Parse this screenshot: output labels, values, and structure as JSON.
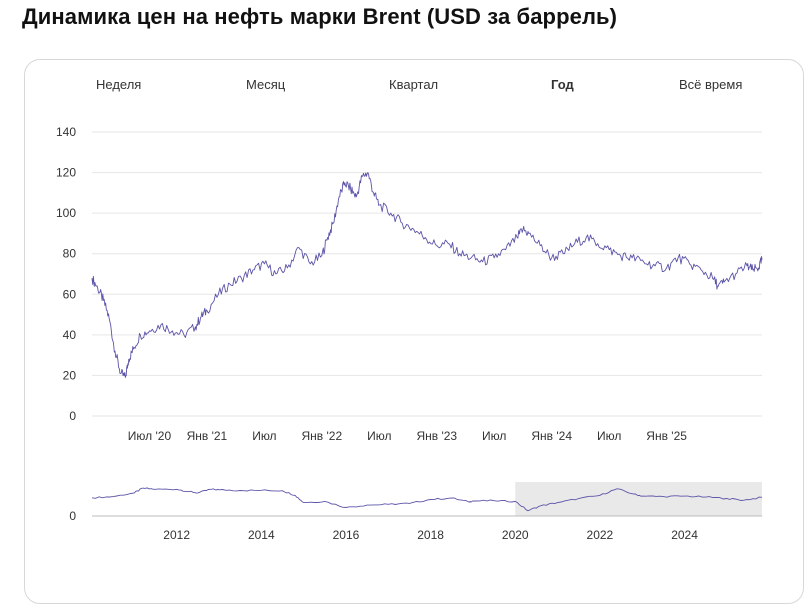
{
  "page": {
    "title": "Динамика цен на нефть марки Brent (USD за баррель)"
  },
  "range_buttons": [
    "Неделя",
    "Месяц",
    "Квартал",
    "Год",
    "Всё время"
  ],
  "active_range": "Год",
  "colors": {
    "line": "#5b54a8",
    "grid": "#e6e6e6",
    "selection": "#e9e9e9"
  },
  "chart_data": [
    {
      "type": "line",
      "title": "",
      "xlabel": "",
      "ylabel": "",
      "ylim": [
        0,
        140
      ],
      "yticks": [
        0,
        20,
        40,
        60,
        80,
        100,
        120,
        140
      ],
      "xrange": [
        2020.0,
        2025.83
      ],
      "xticks": [
        {
          "x": 2020.5,
          "label": "Июл '20"
        },
        {
          "x": 2021.0,
          "label": "Янв '21"
        },
        {
          "x": 2021.5,
          "label": "Июл"
        },
        {
          "x": 2022.0,
          "label": "Янв '22"
        },
        {
          "x": 2022.5,
          "label": "Июл"
        },
        {
          "x": 2023.0,
          "label": "Янв '23"
        },
        {
          "x": 2023.5,
          "label": "Июл"
        },
        {
          "x": 2024.0,
          "label": "Янв '24"
        },
        {
          "x": 2024.5,
          "label": "Июл"
        },
        {
          "x": 2025.0,
          "label": "Янв '25"
        }
      ],
      "grid": true,
      "series": [
        {
          "x": [
            2020.0,
            2020.05,
            2020.1,
            2020.15,
            2020.2,
            2020.25,
            2020.29,
            2020.32,
            2020.36,
            2020.42,
            2020.5,
            2020.6,
            2020.7,
            2020.8,
            2020.9,
            2020.95,
            2021.0,
            2021.1,
            2021.2,
            2021.3,
            2021.4,
            2021.5,
            2021.6,
            2021.7,
            2021.8,
            2021.9,
            2022.0,
            2022.05,
            2022.1,
            2022.15,
            2022.2,
            2022.25,
            2022.3,
            2022.35,
            2022.4,
            2022.45,
            2022.5,
            2022.6,
            2022.7,
            2022.8,
            2022.9,
            2023.0,
            2023.1,
            2023.2,
            2023.3,
            2023.4,
            2023.5,
            2023.6,
            2023.7,
            2023.75,
            2023.8,
            2023.9,
            2024.0,
            2024.1,
            2024.2,
            2024.3,
            2024.4,
            2024.5,
            2024.6,
            2024.7,
            2024.8,
            2024.9,
            2025.0,
            2025.1,
            2025.2,
            2025.3,
            2025.4,
            2025.45,
            2025.5,
            2025.6,
            2025.7,
            2025.75,
            2025.8,
            2025.83
          ],
          "y": [
            68,
            63,
            57,
            48,
            32,
            21,
            19,
            28,
            33,
            40,
            42,
            45,
            42,
            40,
            44,
            49,
            52,
            60,
            65,
            68,
            72,
            75,
            70,
            73,
            83,
            75,
            79,
            88,
            95,
            108,
            115,
            112,
            108,
            118,
            120,
            110,
            104,
            100,
            95,
            92,
            88,
            84,
            85,
            80,
            78,
            76,
            78,
            82,
            88,
            92,
            90,
            84,
            78,
            80,
            85,
            88,
            85,
            82,
            79,
            78,
            76,
            74,
            73,
            78,
            75,
            72,
            68,
            64,
            66,
            70,
            74,
            72,
            73,
            77
          ]
        }
      ]
    },
    {
      "type": "area",
      "title": "",
      "xlabel": "",
      "ylabel": "",
      "ylim": [
        0,
        140
      ],
      "yticks": [
        0
      ],
      "xticks": [
        2012,
        2014,
        2016,
        2018,
        2020,
        2022,
        2024
      ],
      "selection": [
        2020.0,
        2025.83
      ],
      "grid": false,
      "series": [
        {
          "x": [
            2010.0,
            2010.5,
            2011.0,
            2011.2,
            2011.5,
            2012.0,
            2012.3,
            2012.5,
            2012.8,
            2013.0,
            2013.5,
            2014.0,
            2014.5,
            2014.8,
            2015.0,
            2015.5,
            2016.0,
            2016.5,
            2017.0,
            2017.5,
            2018.0,
            2018.5,
            2018.9,
            2019.0,
            2019.5,
            2020.0,
            2020.3,
            2020.6,
            2021.0,
            2021.5,
            2022.0,
            2022.4,
            2022.8,
            2023.0,
            2023.5,
            2024.0,
            2024.5,
            2025.0,
            2025.4,
            2025.83
          ],
          "y": [
            75,
            80,
            95,
            115,
            110,
            110,
            100,
            95,
            110,
            108,
            105,
            106,
            104,
            85,
            55,
            60,
            35,
            45,
            48,
            52,
            68,
            74,
            58,
            62,
            63,
            60,
            22,
            42,
            55,
            72,
            85,
            112,
            90,
            82,
            80,
            82,
            78,
            72,
            65,
            77
          ]
        }
      ]
    }
  ]
}
